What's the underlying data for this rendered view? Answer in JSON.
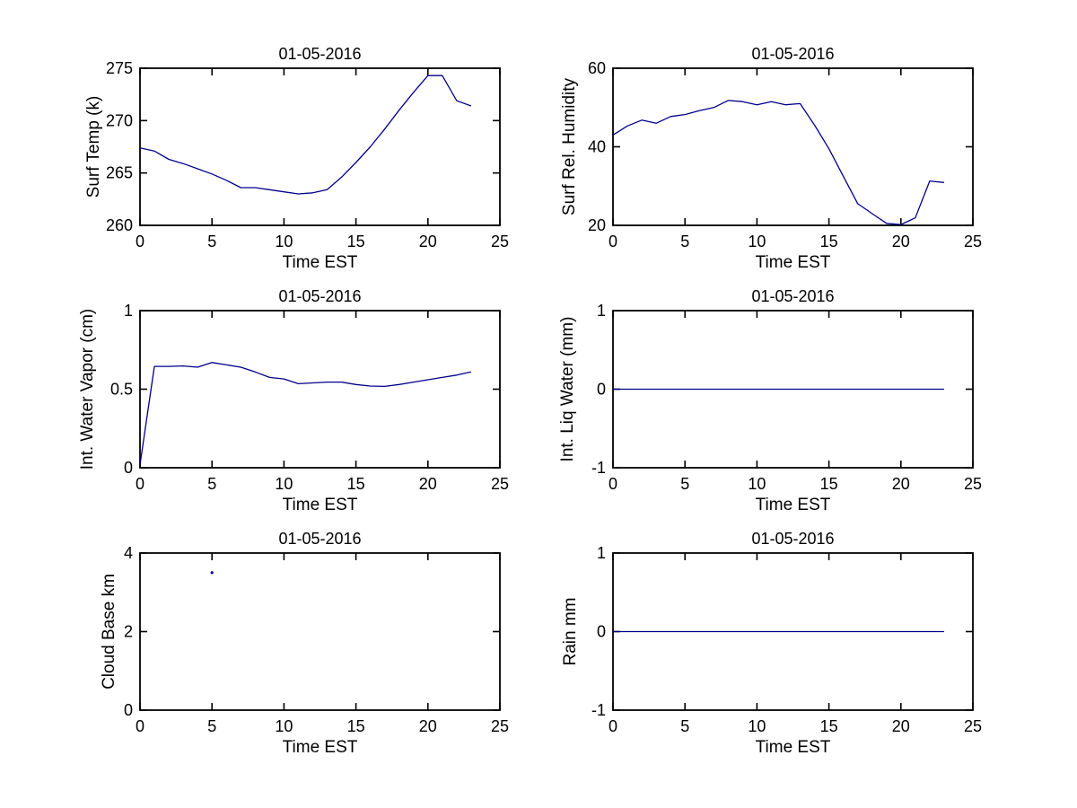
{
  "figure": {
    "background": "#FFFFFF",
    "axis_color": "#000000",
    "line_color": "#00008B",
    "date_shown": "01-05-2016"
  },
  "chart_data": [
    {
      "type": "line",
      "title": "01-05-2016",
      "xlabel": "Time EST",
      "ylabel": "Surf Temp (k)",
      "xlim": [
        0,
        25
      ],
      "ylim": [
        260,
        275
      ],
      "xticks": [
        0,
        5,
        10,
        15,
        20,
        25
      ],
      "yticks": [
        260,
        265,
        270,
        275
      ],
      "grid": false,
      "legend": "none",
      "x": [
        0,
        1,
        2,
        3,
        4,
        5,
        6,
        7,
        8,
        9,
        10,
        11,
        12,
        13,
        14,
        15,
        16,
        17,
        18,
        19,
        20,
        21,
        22,
        23
      ],
      "y": [
        267.4,
        267.1,
        266.3,
        265.9,
        265.4,
        264.9,
        264.3,
        263.6,
        263.6,
        263.4,
        263.2,
        263.0,
        263.1,
        263.4,
        264.6,
        266.0,
        267.5,
        269.2,
        271.0,
        272.7,
        274.3,
        274.3,
        271.9,
        271.4
      ]
    },
    {
      "type": "line",
      "title": "01-05-2016",
      "xlabel": "Time EST",
      "ylabel": "Surf Rel. Humidity",
      "xlim": [
        0,
        25
      ],
      "ylim": [
        20,
        60
      ],
      "xticks": [
        0,
        5,
        10,
        15,
        20,
        25
      ],
      "yticks": [
        20,
        40,
        60
      ],
      "grid": false,
      "legend": "none",
      "x": [
        0,
        1,
        2,
        3,
        4,
        5,
        6,
        7,
        8,
        9,
        10,
        11,
        12,
        13,
        14,
        15,
        16,
        17,
        18,
        19,
        20,
        21,
        22,
        23
      ],
      "y": [
        43.0,
        45.3,
        46.8,
        46.0,
        47.7,
        48.2,
        49.2,
        50.0,
        51.8,
        51.5,
        50.7,
        51.5,
        50.7,
        51.0,
        45.5,
        39.5,
        32.5,
        25.5,
        23.0,
        20.5,
        20.2,
        21.9,
        31.3,
        30.9
      ]
    },
    {
      "type": "line",
      "title": "01-05-2016",
      "xlabel": "Time EST",
      "ylabel": "Int. Water Vapor (cm)",
      "xlim": [
        0,
        25
      ],
      "ylim": [
        0,
        1
      ],
      "xticks": [
        0,
        5,
        10,
        15,
        20,
        25
      ],
      "yticks": [
        0,
        0.5,
        1
      ],
      "grid": false,
      "legend": "none",
      "x": [
        0,
        1,
        2,
        3,
        4,
        5,
        6,
        7,
        8,
        9,
        10,
        11,
        12,
        13,
        14,
        15,
        16,
        17,
        18,
        19,
        20,
        21,
        22,
        23
      ],
      "y": [
        0.02,
        0.645,
        0.645,
        0.648,
        0.64,
        0.67,
        0.655,
        0.64,
        0.61,
        0.575,
        0.565,
        0.535,
        0.54,
        0.545,
        0.545,
        0.53,
        0.52,
        0.518,
        0.53,
        0.545,
        0.56,
        0.575,
        0.59,
        0.61
      ]
    },
    {
      "type": "line",
      "title": "01-05-2016",
      "xlabel": "Time EST",
      "ylabel": "Int. Liq Water (mm)",
      "xlim": [
        0,
        25
      ],
      "ylim": [
        -1,
        1
      ],
      "xticks": [
        0,
        5,
        10,
        15,
        20,
        25
      ],
      "yticks": [
        -1,
        0,
        1
      ],
      "grid": false,
      "legend": "none",
      "x": [
        0,
        1,
        2,
        3,
        4,
        5,
        6,
        7,
        8,
        9,
        10,
        11,
        12,
        13,
        14,
        15,
        16,
        17,
        18,
        19,
        20,
        21,
        22,
        23
      ],
      "y": [
        0,
        0,
        0,
        0,
        0,
        0,
        0,
        0,
        0,
        0,
        0,
        0,
        0,
        0,
        0,
        0,
        0,
        0,
        0,
        0,
        0,
        0,
        0,
        0
      ]
    },
    {
      "type": "scatter",
      "title": "01-05-2016",
      "xlabel": "Time EST",
      "ylabel": "Cloud Base km",
      "xlim": [
        0,
        25
      ],
      "ylim": [
        0,
        4
      ],
      "xticks": [
        0,
        5,
        10,
        15,
        20,
        25
      ],
      "yticks": [
        0,
        2,
        4
      ],
      "grid": false,
      "legend": "none",
      "x": [
        5
      ],
      "y": [
        3.5
      ]
    },
    {
      "type": "line",
      "title": "01-05-2016",
      "xlabel": "Time EST",
      "ylabel": "Rain mm",
      "xlim": [
        0,
        25
      ],
      "ylim": [
        -1,
        1
      ],
      "xticks": [
        0,
        5,
        10,
        15,
        20,
        25
      ],
      "yticks": [
        -1,
        0,
        1
      ],
      "grid": false,
      "legend": "none",
      "x": [
        0,
        1,
        2,
        3,
        4,
        5,
        6,
        7,
        8,
        9,
        10,
        11,
        12,
        13,
        14,
        15,
        16,
        17,
        18,
        19,
        20,
        21,
        22,
        23
      ],
      "y": [
        0,
        0,
        0,
        0,
        0,
        0,
        0,
        0,
        0,
        0,
        0,
        0,
        0,
        0,
        0,
        0,
        0,
        0,
        0,
        0,
        0,
        0,
        0,
        0
      ]
    }
  ]
}
